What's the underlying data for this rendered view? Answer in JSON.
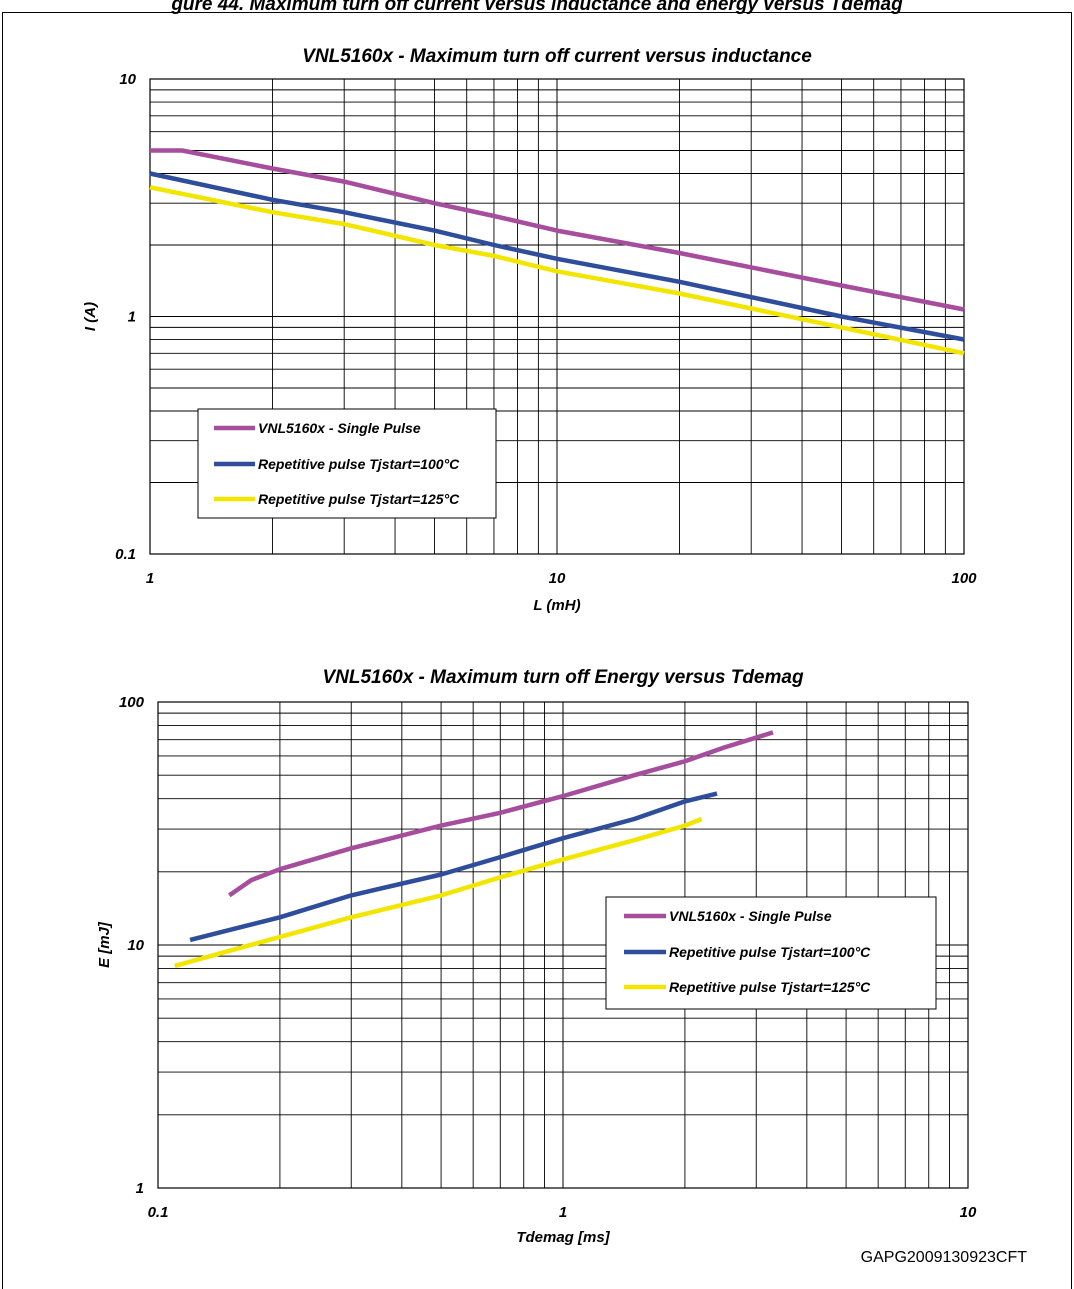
{
  "header": {
    "clipped_title": "gure 44. Maximum turn off current versus inductance and energy versus Tdemag"
  },
  "figure_code": "GAPG2009130923CFT",
  "colors": {
    "single": "#a64d9e",
    "rep100": "#2e4d9b",
    "rep125": "#f2e600",
    "grid": "#000000"
  },
  "chart_data": [
    {
      "type": "line",
      "title": "VNL5160x - Maximum turn off current versus inductance",
      "xlabel": "L (mH)",
      "ylabel": "I (A)",
      "xscale": "log",
      "yscale": "log",
      "xlim": [
        1,
        100
      ],
      "ylim": [
        0.1,
        10
      ],
      "xticks": [
        "1",
        "10",
        "100"
      ],
      "yticks": [
        "0.1",
        "1",
        "10"
      ],
      "grid": true,
      "legend_position": "lower-left",
      "series": [
        {
          "name": "VNL5160x - Single Pulse",
          "color": "single",
          "x": [
            1,
            1.2,
            2,
            3,
            5,
            7,
            10,
            20,
            50,
            100
          ],
          "y": [
            5.0,
            5.0,
            4.2,
            3.7,
            3.0,
            2.65,
            2.3,
            1.85,
            1.35,
            1.07
          ]
        },
        {
          "name": "Repetitive pulse Tjstart=100°C",
          "color": "rep100",
          "x": [
            1,
            2,
            3,
            5,
            7,
            10,
            20,
            50,
            100
          ],
          "y": [
            4.0,
            3.1,
            2.75,
            2.3,
            2.0,
            1.75,
            1.4,
            1.0,
            0.8
          ]
        },
        {
          "name": "Repetitive pulse Tjstart=125°C",
          "color": "rep125",
          "x": [
            1,
            2,
            3,
            5,
            7,
            10,
            20,
            50,
            100
          ],
          "y": [
            3.5,
            2.75,
            2.45,
            2.0,
            1.8,
            1.55,
            1.25,
            0.9,
            0.7
          ]
        }
      ]
    },
    {
      "type": "line",
      "title": "VNL5160x - Maximum turn off Energy versus Tdemag",
      "xlabel": "Tdemag [ms]",
      "ylabel": "E [mJ]",
      "xscale": "log",
      "yscale": "log",
      "xlim": [
        0.1,
        10
      ],
      "ylim": [
        1,
        100
      ],
      "xticks": [
        "0.1",
        "1",
        "10"
      ],
      "yticks": [
        "1",
        "10",
        "100"
      ],
      "grid": true,
      "legend_position": "right",
      "series": [
        {
          "name": "VNL5160x - Single Pulse",
          "color": "single",
          "x": [
            0.15,
            0.17,
            0.2,
            0.3,
            0.5,
            0.7,
            1.0,
            1.5,
            2.0,
            2.5,
            3.3
          ],
          "y": [
            16,
            18.5,
            20.5,
            25,
            31,
            35,
            41,
            50,
            57,
            65,
            75
          ]
        },
        {
          "name": "Repetitive pulse Tjstart=100°C",
          "color": "rep100",
          "x": [
            0.12,
            0.2,
            0.3,
            0.5,
            0.7,
            1.0,
            1.5,
            2.0,
            2.4
          ],
          "y": [
            10.5,
            13,
            16,
            19.5,
            23,
            27.5,
            33,
            39,
            42
          ]
        },
        {
          "name": "Repetitive pulse Tjstart=125°C",
          "color": "rep125",
          "x": [
            0.11,
            0.2,
            0.3,
            0.5,
            0.7,
            1.0,
            1.5,
            2.0,
            2.2
          ],
          "y": [
            8.2,
            10.8,
            13,
            16,
            19,
            22.5,
            27,
            31,
            33
          ]
        }
      ]
    }
  ]
}
